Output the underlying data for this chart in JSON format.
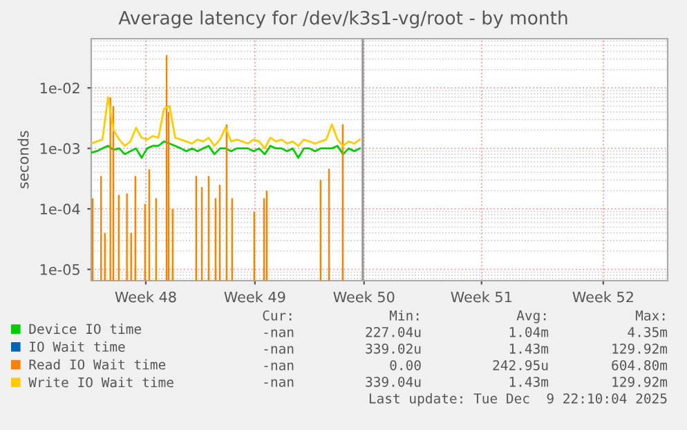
{
  "chart_data": {
    "type": "line",
    "title": "Average latency for /dev/k3s1-vg/root - by month",
    "ylabel": "seconds",
    "log": "y",
    "grid": true,
    "legend": "bottom",
    "xlim": [
      "2025-11-23T18:00",
      "2025-12-28T02:00"
    ],
    "xticks": [
      {
        "value": "2025-11-27T00:00",
        "label": "Week 48"
      },
      {
        "value": "2025-12-03T12:00",
        "label": "Week 49"
      },
      {
        "value": "2025-12-10T00:00",
        "label": "Week 50"
      },
      {
        "value": "2025-12-17T00:00",
        "label": "Week 51"
      },
      {
        "value": "2025-12-24T06:00",
        "label": "Week 52"
      }
    ],
    "ylim": [
      6.5e-06,
      0.065
    ],
    "yticks": [
      {
        "value": 1e-05,
        "label": "1e-05"
      },
      {
        "value": 0.0001,
        "label": "1e-04"
      },
      {
        "value": 0.001,
        "label": "1e-03"
      },
      {
        "value": 0.01,
        "label": "1e-02"
      }
    ],
    "x": [
      "2025-11-23T18:00",
      "2025-11-24T02:00",
      "2025-11-24T10:00",
      "2025-11-24T18:00",
      "2025-11-25T02:00",
      "2025-11-25T10:00",
      "2025-11-25T18:00",
      "2025-11-26T02:00",
      "2025-11-26T10:00",
      "2025-11-26T18:00",
      "2025-11-27T02:00",
      "2025-11-27T10:00",
      "2025-11-27T18:00",
      "2025-11-28T02:00",
      "2025-11-28T10:00",
      "2025-11-28T18:00",
      "2025-11-29T02:00",
      "2025-11-29T10:00",
      "2025-11-29T18:00",
      "2025-11-30T02:00",
      "2025-11-30T10:00",
      "2025-11-30T18:00",
      "2025-12-01T02:00",
      "2025-12-01T10:00",
      "2025-12-01T18:00",
      "2025-12-02T02:00",
      "2025-12-02T10:00",
      "2025-12-02T18:00",
      "2025-12-03T02:00",
      "2025-12-03T10:00",
      "2025-12-03T18:00",
      "2025-12-04T02:00",
      "2025-12-04T10:00",
      "2025-12-04T18:00",
      "2025-12-05T02:00",
      "2025-12-05T10:00",
      "2025-12-05T18:00",
      "2025-12-06T02:00",
      "2025-12-06T10:00",
      "2025-12-06T18:00",
      "2025-12-07T02:00",
      "2025-12-07T10:00",
      "2025-12-07T18:00",
      "2025-12-08T02:00",
      "2025-12-08T10:00",
      "2025-12-08T18:00",
      "2025-12-09T02:00",
      "2025-12-09T10:00",
      "2025-12-09T18:00"
    ],
    "series": [
      {
        "name": "Device IO time",
        "color": "#00cc00",
        "values": [
          0.00085,
          0.0009,
          0.001,
          0.0011,
          0.00095,
          0.001,
          0.0008,
          0.0009,
          0.001,
          0.0007,
          0.001,
          0.0011,
          0.0011,
          0.0013,
          0.0012,
          0.0011,
          0.001,
          0.0009,
          0.001,
          0.0009,
          0.001,
          0.0011,
          0.0008,
          0.001,
          0.001,
          0.0009,
          0.001,
          0.001,
          0.001,
          0.0009,
          0.001,
          0.0008,
          0.0011,
          0.001,
          0.001,
          0.0009,
          0.001,
          0.0007,
          0.001,
          0.001,
          0.0009,
          0.001,
          0.001,
          0.001,
          0.0011,
          0.0008,
          0.001,
          0.0009,
          0.001
        ]
      },
      {
        "name": "IO Wait time",
        "color": "#0066b3",
        "values": [
          null,
          null,
          null,
          null,
          null,
          null,
          null,
          null,
          null,
          null,
          null,
          null,
          null,
          null,
          null,
          null,
          null,
          null,
          null,
          null,
          null,
          null,
          null,
          null,
          null,
          null,
          null,
          null,
          null,
          null,
          null,
          null,
          null,
          null,
          null,
          null,
          null,
          null,
          null,
          null,
          null,
          null,
          null,
          null,
          null,
          null,
          null,
          null,
          null
        ]
      },
      {
        "name": "Read IO Wait time",
        "color": "#ff8000",
        "type": "bar",
        "x": [
          "2025-11-23T20:00",
          "2025-11-24T08:00",
          "2025-11-24T13:30",
          "2025-11-24T21:20",
          "2025-11-25T01:30",
          "2025-11-25T09:20",
          "2025-11-25T21:00",
          "2025-11-26T03:00",
          "2025-11-26T09:00",
          "2025-11-26T22:50",
          "2025-11-27T04:50",
          "2025-11-27T14:40",
          "2025-11-28T05:45",
          "2025-11-28T08:30",
          "2025-11-28T14:20",
          "2025-11-30T00:00",
          "2025-11-30T08:00",
          "2025-11-30T17:50",
          "2025-12-01T03:40",
          "2025-12-01T09:40",
          "2025-12-01T19:30",
          "2025-12-02T03:20",
          "2025-12-03T11:00",
          "2025-12-04T01:00",
          "2025-12-04T04:50",
          "2025-12-07T09:50",
          "2025-12-07T21:50",
          "2025-12-08T17:30"
        ],
        "values": [
          0.00015,
          0.00035,
          4e-05,
          0.007,
          0.005,
          0.00017,
          0.00018,
          4e-05,
          0.00035,
          0.00012,
          0.00045,
          0.00015,
          0.035,
          0.004,
          0.0001,
          0.00035,
          0.00023,
          0.00035,
          0.00015,
          0.00025,
          0.0025,
          0.00015,
          9e-05,
          0.00015,
          0.0002,
          0.0003,
          0.00046,
          0.0025
        ]
      },
      {
        "name": "Write IO Wait time",
        "color": "#ffcc00",
        "values": [
          0.0012,
          0.0013,
          0.0014,
          0.007,
          0.002,
          0.0014,
          0.0011,
          0.0013,
          0.0022,
          0.0015,
          0.0014,
          0.0016,
          0.0015,
          0.0045,
          0.005,
          0.0015,
          0.0014,
          0.0013,
          0.0012,
          0.0014,
          0.0013,
          0.0015,
          0.0011,
          0.0014,
          0.0022,
          0.0013,
          0.0014,
          0.0013,
          0.0012,
          0.0014,
          0.0013,
          0.001,
          0.0015,
          0.0013,
          0.0014,
          0.0012,
          0.0013,
          0.0011,
          0.0014,
          0.0013,
          0.0012,
          0.0013,
          0.0014,
          0.0025,
          0.0014,
          0.0011,
          0.0013,
          0.0012,
          0.0014
        ]
      }
    ],
    "ref_lines": [
      {
        "axis": "x",
        "value": "2025-12-09T22:10",
        "color": "#999999"
      }
    ],
    "annotations": [
      "Cur:",
      "Min:",
      "Avg:",
      "Max:",
      "-nan",
      "227.04u",
      "1.04m",
      "4.35m",
      "-nan",
      "339.02u",
      "1.43m",
      "129.92m",
      "-nan",
      "0.00",
      "242.95u",
      "604.80m",
      "-nan",
      "339.04u",
      "1.43m",
      "129.92m",
      "Last update: Tue Dec  9 22:10:04 2025"
    ]
  }
}
